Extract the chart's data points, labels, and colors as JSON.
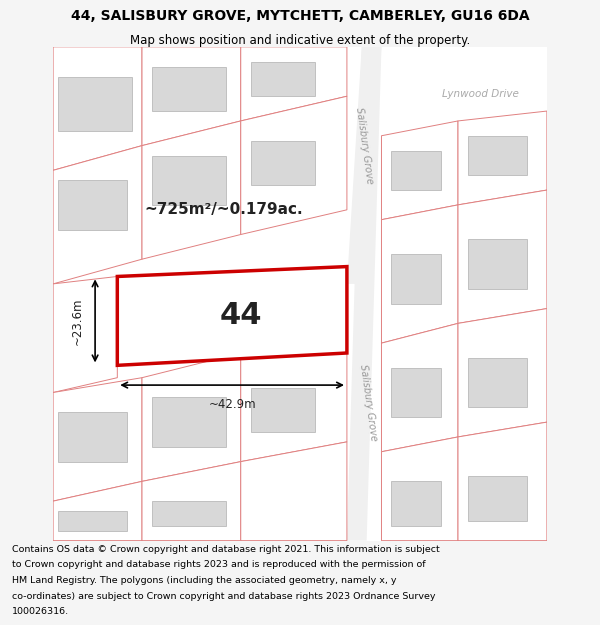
{
  "title_line1": "44, SALISBURY GROVE, MYTCHETT, CAMBERLEY, GU16 6DA",
  "title_line2": "Map shows position and indicative extent of the property.",
  "footer_lines": [
    "Contains OS data © Crown copyright and database right 2021. This information is subject",
    "to Crown copyright and database rights 2023 and is reproduced with the permission of",
    "HM Land Registry. The polygons (including the associated geometry, namely x, y",
    "co-ordinates) are subject to Crown copyright and database rights 2023 Ordnance Survey",
    "100026316."
  ],
  "bg_color": "#f5f5f5",
  "map_bg": "#ffffff",
  "plot_outline_color": "#e08080",
  "highlight_color": "#cc0000",
  "building_color": "#d8d8d8",
  "area_text": "~725m²/~0.179ac.",
  "number_label": "44",
  "dim_width": "~42.9m",
  "dim_height": "~23.6m",
  "road_label_sg_top": "Salisbury Grove",
  "road_label_sg_bot": "Salisbury Grove",
  "road_label_lynwood": "Lynwood Drive"
}
